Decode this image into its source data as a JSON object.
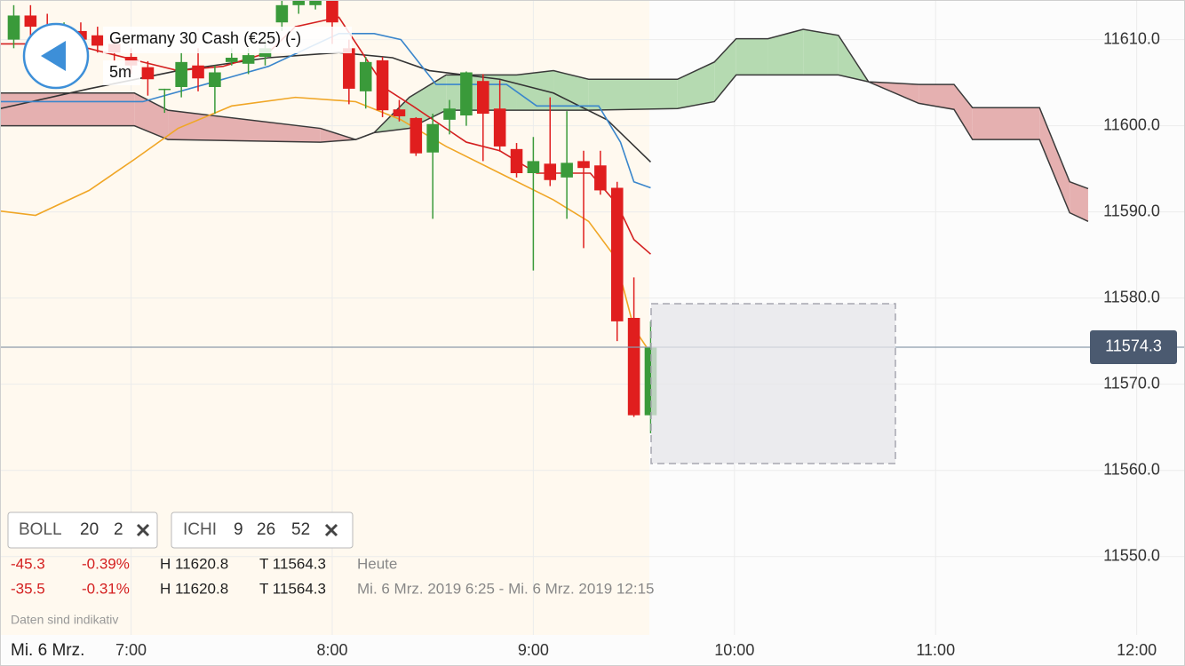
{
  "chart_data": {
    "type": "candlestick",
    "xlim": [
      380.9,
      734.4
    ],
    "ylim": [
      11540.9,
      11614.6
    ],
    "xticks": [
      {
        "value": 420,
        "label": "7:00"
      },
      {
        "value": 480,
        "label": "8:00"
      },
      {
        "value": 540,
        "label": "9:00"
      },
      {
        "value": 600,
        "label": "10:00"
      },
      {
        "value": 660,
        "label": "11:00"
      },
      {
        "value": 720,
        "label": "12:00"
      }
    ],
    "yticks": [
      {
        "value": 11550,
        "label": "11550.0"
      },
      {
        "value": 11560,
        "label": "11560.0"
      },
      {
        "value": 11570,
        "label": "11570.0"
      },
      {
        "value": 11580,
        "label": "11580.0"
      },
      {
        "value": 11590,
        "label": "11590.0"
      },
      {
        "value": 11600,
        "label": "11600.0"
      },
      {
        "value": 11610,
        "label": "11610.0"
      }
    ],
    "grid": true,
    "candles": {
      "up_color": "#3a9a3a",
      "down_color": "#e01e1e",
      "x": [
        385,
        390,
        395,
        400,
        405,
        410,
        415,
        420,
        425,
        430,
        435,
        440,
        445,
        450,
        455,
        460,
        465,
        470,
        475,
        480,
        485,
        490,
        495,
        500,
        505,
        510,
        515,
        520,
        525,
        530,
        535,
        540,
        545,
        550,
        555,
        560,
        565,
        570,
        575
      ],
      "open": [
        11610,
        11612.8,
        11611.5,
        11610.5,
        11611,
        11610.5,
        11609.5,
        11608,
        11606.8,
        11604.3,
        11604.5,
        11607,
        11604.5,
        11607.4,
        11607.2,
        11608,
        11612,
        11614,
        11614,
        11614.6,
        11609,
        11604,
        11607.6,
        11601.9,
        11600.9,
        11596.9,
        11600.7,
        11601.2,
        11605.2,
        11602,
        11597.3,
        11594.5,
        11595.6,
        11594,
        11595.9,
        11595.4,
        11592.8,
        11577.7,
        11566.4
      ],
      "high": [
        11614,
        11614,
        11613,
        11612,
        11612,
        11611.5,
        11610,
        11609,
        11607.5,
        11604.3,
        11608.5,
        11609,
        11607,
        11609,
        11609,
        11610,
        11614.6,
        11614.6,
        11614.6,
        11614.6,
        11610,
        11608,
        11608,
        11603,
        11601,
        11601.4,
        11603,
        11606.3,
        11606,
        11605.3,
        11598,
        11598.7,
        11603.3,
        11601.7,
        11597.1,
        11597.1,
        11593.5,
        11582.4,
        11577.3
      ],
      "low": [
        11609,
        11609.5,
        11609,
        11609,
        11608,
        11608.5,
        11607.5,
        11606,
        11603.5,
        11601.5,
        11603.3,
        11604,
        11601.4,
        11607,
        11606,
        11607,
        11611,
        11613,
        11613.5,
        11609.5,
        11602.5,
        11602,
        11601,
        11600.5,
        11596.5,
        11589.2,
        11599,
        11600,
        11595.9,
        11597,
        11594,
        11583.2,
        11593,
        11589.2,
        11585.8,
        11592,
        11575,
        11566.2,
        11564.3
      ],
      "close": [
        11612.8,
        11611.5,
        11610.5,
        11611,
        11610,
        11609.3,
        11608.5,
        11607,
        11605.4,
        11604.3,
        11607.4,
        11605.5,
        11606.2,
        11607.9,
        11608.2,
        11609,
        11614,
        11614.5,
        11614.5,
        11612,
        11604.3,
        11607.4,
        11601.8,
        11601.1,
        11596.8,
        11600.2,
        11602,
        11606.2,
        11601.4,
        11597.6,
        11594.5,
        11595.9,
        11593.7,
        11595.7,
        11595.1,
        11592.5,
        11577.3,
        11566.4,
        11574.3
      ]
    },
    "lines": [
      {
        "color": "#f0a626",
        "x": [
          381,
          391.5,
          407.5,
          421,
          434,
          450,
          469,
          487,
          500.5,
          514,
          530,
          546,
          556.5,
          564.5,
          570,
          575
        ],
        "values": [
          11590.1,
          11589.6,
          11592.5,
          11596.1,
          11599.7,
          11602.3,
          11603.3,
          11602.8,
          11600.7,
          11597.6,
          11594.5,
          11591.4,
          11588.9,
          11584.7,
          11576.5,
          11573.6
        ]
      },
      {
        "color": "#333333",
        "x": [
          381,
          407.5,
          434,
          461,
          482,
          498,
          509,
          530,
          546,
          562,
          575
        ],
        "values": [
          11602.0,
          11604.3,
          11606.4,
          11607.9,
          11608.5,
          11607.9,
          11606.4,
          11605.4,
          11603.8,
          11600.7,
          11595.8
        ]
      },
      {
        "color": "#d42020",
        "x": [
          381,
          402,
          423.5,
          434,
          447.5,
          461,
          469,
          482,
          496,
          504,
          520,
          530,
          541,
          557,
          565,
          570,
          575
        ],
        "values": [
          11609.5,
          11609.5,
          11607.4,
          11606.4,
          11606.9,
          11608.5,
          11611.5,
          11612.6,
          11604.3,
          11602.3,
          11598.1,
          11597.1,
          11594.5,
          11594.5,
          11590.9,
          11586.8,
          11585.1
        ]
      },
      {
        "color": "#3a86cc",
        "x": [
          381,
          423.5,
          442,
          461,
          482,
          492.5,
          500.5,
          511,
          532,
          541,
          559.5,
          566,
          570,
          575
        ],
        "values": [
          11602.8,
          11602.8,
          11604.8,
          11606.9,
          11610.7,
          11610.7,
          11610.0,
          11604.8,
          11604.8,
          11602.3,
          11602.3,
          11598.1,
          11593.5,
          11592.8
        ]
      }
    ],
    "ichimoku": {
      "up_color": "#b5dab1",
      "down_color": "#e5b0b0",
      "line_color": "#3a3a3a",
      "x": [
        381,
        421,
        431,
        476.5,
        487,
        492.5,
        503,
        514,
        535,
        546,
        556.5,
        583,
        594,
        600.5,
        610,
        620.5,
        631,
        640,
        655,
        665.5,
        671,
        691,
        700,
        705.5
      ],
      "span_a": [
        11600.0,
        11600.0,
        11598.4,
        11598.1,
        11598.4,
        11599.2,
        11603.3,
        11605.9,
        11605.9,
        11606.4,
        11605.4,
        11605.4,
        11607.4,
        11610.1,
        11610.1,
        11611.2,
        11610.5,
        11605.1,
        11602.6,
        11601.9,
        11598.4,
        11598.4,
        11589.9,
        11588.9
      ],
      "span_b": [
        11603.8,
        11603.8,
        11601.8,
        11599.7,
        11598.4,
        11599.2,
        11599.7,
        11601.8,
        11601.8,
        11601.8,
        11601.8,
        11602.0,
        11602.8,
        11605.9,
        11605.9,
        11605.9,
        11605.9,
        11605.1,
        11604.8,
        11604.8,
        11602.1,
        11602.1,
        11593.5,
        11592.7
      ]
    },
    "last_price": {
      "value": 11574.3,
      "label": "11574.3",
      "color": "#8d9bab"
    }
  },
  "header": {
    "instrument": "Germany 30 Cash (€25) (-)",
    "interval": "5m"
  },
  "indicators": [
    {
      "name": "BOLL",
      "params": [
        "20",
        "2"
      ]
    },
    {
      "name": "ICHI",
      "params": [
        "9",
        "26",
        "52"
      ]
    }
  ],
  "stats": [
    {
      "change": "-45.3",
      "percent": "-0.39%",
      "high": "H 11620.8",
      "low": "T 11564.3",
      "period": "Heute"
    },
    {
      "change": "-35.5",
      "percent": "-0.31%",
      "high": "H 11620.8",
      "low": "T 11564.3",
      "period": "Mi. 6 Mrz. 2019 6:25 - Mi. 6 Mrz. 2019 12:15"
    }
  ],
  "disclaimer": "Daten sind indikativ",
  "date_label": "Mi. 6 Mrz."
}
